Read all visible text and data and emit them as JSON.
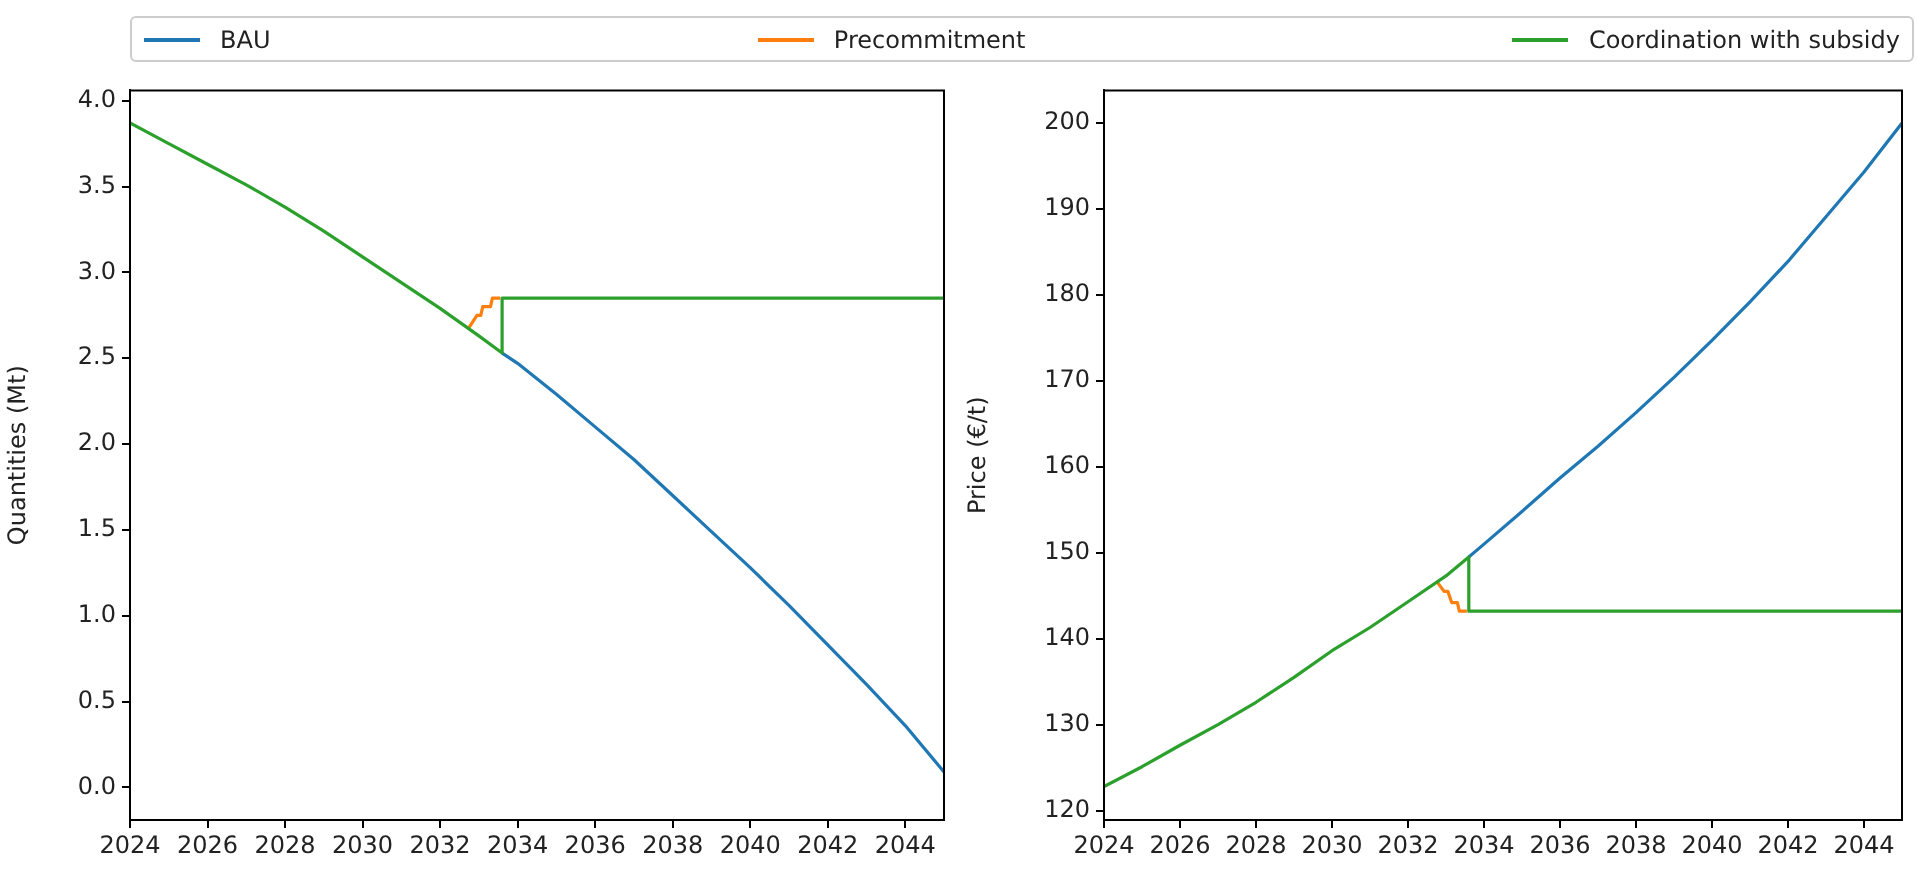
{
  "chart_data": [
    {
      "type": "line",
      "ylabel": "Quantities (Mt)",
      "xlim": [
        2024,
        2045
      ],
      "xticks": [
        2024,
        2026,
        2028,
        2030,
        2032,
        2034,
        2036,
        2038,
        2040,
        2042,
        2044
      ],
      "ylim": [
        -0.19,
        4.06
      ],
      "yticks": [
        {
          "value": 0,
          "label": "0.0"
        },
        0.5,
        {
          "value": 1,
          "label": "1.0"
        },
        1.5,
        {
          "value": 2,
          "label": "2.0"
        },
        2.5,
        {
          "value": 3,
          "label": "3.0"
        },
        3.5,
        {
          "value": 4,
          "label": "4.0"
        }
      ],
      "grid": false,
      "legend": "top",
      "series": [
        {
          "name": "BAU",
          "color": "#1f77b4",
          "x": [
            2033.6,
            2034,
            2035,
            2036,
            2037,
            2038,
            2039,
            2040,
            2041,
            2042,
            2043,
            2044,
            2045
          ],
          "values": [
            2.53,
            2.47,
            2.29,
            2.1,
            1.91,
            1.7,
            1.49,
            1.28,
            1.06,
            0.83,
            0.6,
            0.36,
            0.09
          ]
        },
        {
          "name": "Precommitment",
          "color": "#ff7f0e",
          "x": [
            2032.75,
            2032.95,
            2033.05,
            2033.1,
            2033.3,
            2033.35,
            2033.55
          ],
          "values": [
            2.68,
            2.75,
            2.75,
            2.8,
            2.8,
            2.85,
            2.85
          ]
        },
        {
          "name": "Coordination with subsidy",
          "color": "#2ca02c",
          "x": [
            2024,
            2025,
            2026,
            2027,
            2028,
            2029,
            2030,
            2031,
            2032,
            2033,
            2033.6,
            2033.6,
            2045
          ],
          "values": [
            3.87,
            3.75,
            3.63,
            3.51,
            3.38,
            3.24,
            3.09,
            2.94,
            2.79,
            2.63,
            2.53,
            2.85,
            2.85
          ]
        }
      ]
    },
    {
      "type": "line",
      "ylabel": "Price (€/t)",
      "xlim": [
        2024,
        2045
      ],
      "xticks": [
        2024,
        2026,
        2028,
        2030,
        2032,
        2034,
        2036,
        2038,
        2040,
        2042,
        2044
      ],
      "ylim": [
        118.9,
        203.8
      ],
      "yticks": [
        120,
        130,
        140,
        150,
        160,
        170,
        180,
        190,
        200
      ],
      "grid": false,
      "series": [
        {
          "color": "#1f77b4",
          "x": [
            2033.6,
            2034,
            2035,
            2036,
            2037,
            2038,
            2039,
            2040,
            2041,
            2042,
            2043,
            2044,
            2045
          ],
          "values": [
            149.5,
            151,
            154.8,
            158.7,
            162.4,
            166.3,
            170.4,
            174.7,
            179.2,
            183.9,
            189.1,
            194.3,
            200
          ]
        },
        {
          "color": "#ff7f0e",
          "x": [
            2032.75,
            2032.95,
            2033.05,
            2033.15,
            2033.3,
            2033.35,
            2033.55
          ],
          "values": [
            146.7,
            145.5,
            145.5,
            144.2,
            144.2,
            143.2,
            143.2
          ]
        },
        {
          "color": "#2ca02c",
          "x": [
            2024,
            2025,
            2026,
            2027,
            2028,
            2029,
            2030,
            2031,
            2032,
            2033,
            2033.6,
            2033.6,
            2045
          ],
          "values": [
            122.8,
            125.1,
            127.6,
            130,
            132.6,
            135.5,
            138.6,
            141.3,
            144.3,
            147.3,
            149.5,
            143.2,
            143.2
          ]
        }
      ]
    }
  ]
}
